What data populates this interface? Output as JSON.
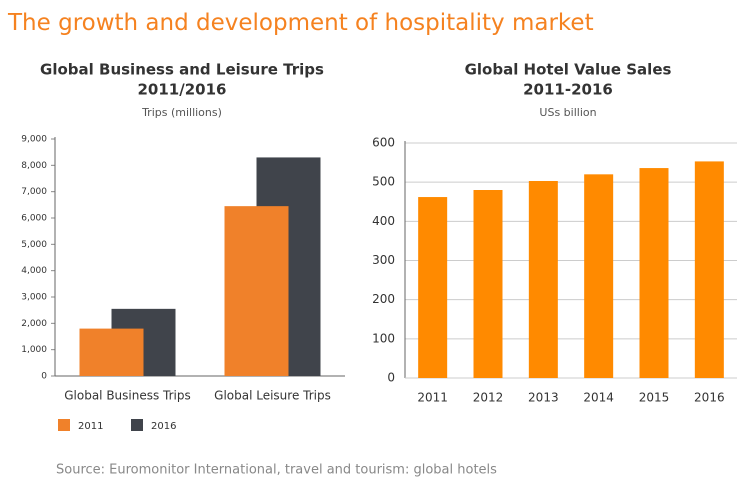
{
  "title": "The growth and development of hospitality market",
  "source": "Source: Euromonitor International, travel and tourism: global hotels",
  "chart_data": [
    {
      "type": "bar",
      "title": [
        "Global Business and Leisure Trips",
        "2011/2016"
      ],
      "y_label": "Trips (millions)",
      "categories": [
        "Global Business Trips",
        "Global Leisure Trips"
      ],
      "series": [
        {
          "name": "2011",
          "color": "#f0812a",
          "values": [
            1800,
            6450
          ]
        },
        {
          "name": "2016",
          "color": "#40444b",
          "values": [
            2550,
            8300
          ]
        }
      ],
      "ylim": [
        0,
        9000
      ],
      "yticks": [
        0,
        {
          "value": 1000,
          "label": "1,000"
        },
        {
          "value": 2000,
          "label": "2,000"
        },
        {
          "value": 3000,
          "label": "3,000"
        },
        {
          "value": 4000,
          "label": "4,000"
        },
        {
          "value": 5000,
          "label": "5,000"
        },
        {
          "value": 6000,
          "label": "6,000"
        },
        {
          "value": 7000,
          "label": "7,000"
        },
        {
          "value": 8000,
          "label": "8,000"
        },
        {
          "value": 9000,
          "label": "9,000"
        }
      ],
      "grid": false,
      "legend": "bottom"
    },
    {
      "type": "bar",
      "title": [
        "Global Hotel Value Sales",
        "2011-2016"
      ],
      "y_label": "USs billion",
      "categories": [
        "2011",
        "2012",
        "2013",
        "2014",
        "2015",
        "2016"
      ],
      "values": [
        462,
        480,
        503,
        520,
        536,
        553
      ],
      "color": "#ff8a00",
      "ylim": [
        0,
        600
      ],
      "yticks": [
        0,
        100,
        200,
        300,
        400,
        500,
        600
      ],
      "grid": true
    }
  ]
}
